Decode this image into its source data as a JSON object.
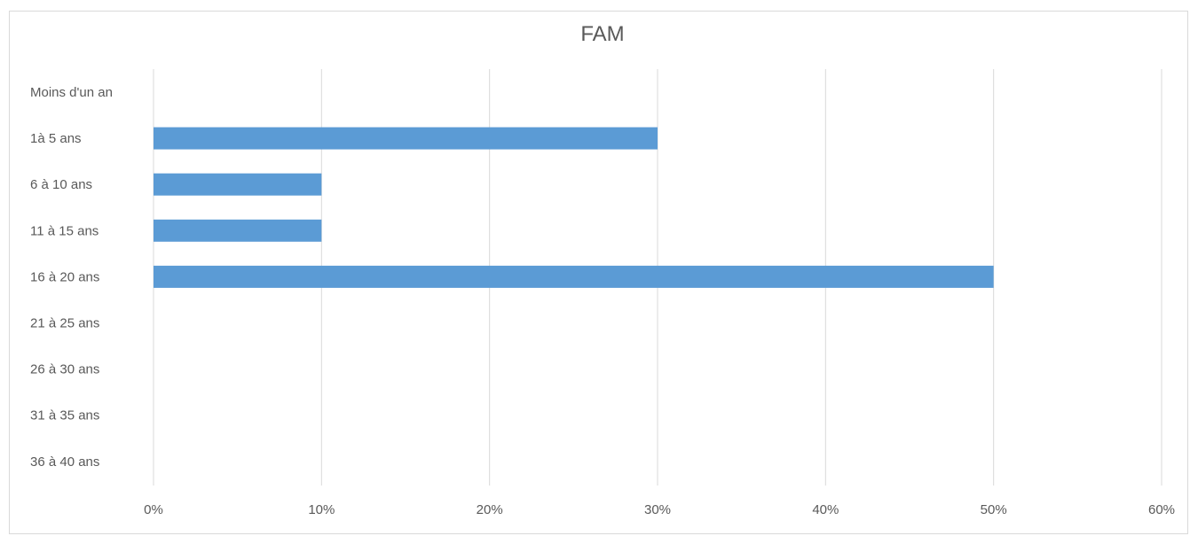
{
  "chart_data": {
    "type": "bar",
    "orientation": "horizontal",
    "title": "FAM",
    "categories": [
      "Moins d'un an",
      "1à 5 ans",
      "6 à 10 ans",
      "11 à 15 ans",
      "16 à 20 ans",
      "21 à 25 ans",
      "26 à 30 ans",
      "31 à 35 ans",
      "36 à 40 ans"
    ],
    "values": [
      0,
      0.3,
      0.1,
      0.1,
      0.5,
      0,
      0,
      0,
      0
    ],
    "xlim": [
      0,
      0.6
    ],
    "xticks": [
      0,
      0.1,
      0.2,
      0.3,
      0.4,
      0.5,
      0.6
    ],
    "xtick_labels": [
      "0%",
      "10%",
      "20%",
      "30%",
      "40%",
      "50%",
      "60%"
    ],
    "grid": true,
    "legend": "none",
    "bar_color": "#5b9bd5"
  }
}
